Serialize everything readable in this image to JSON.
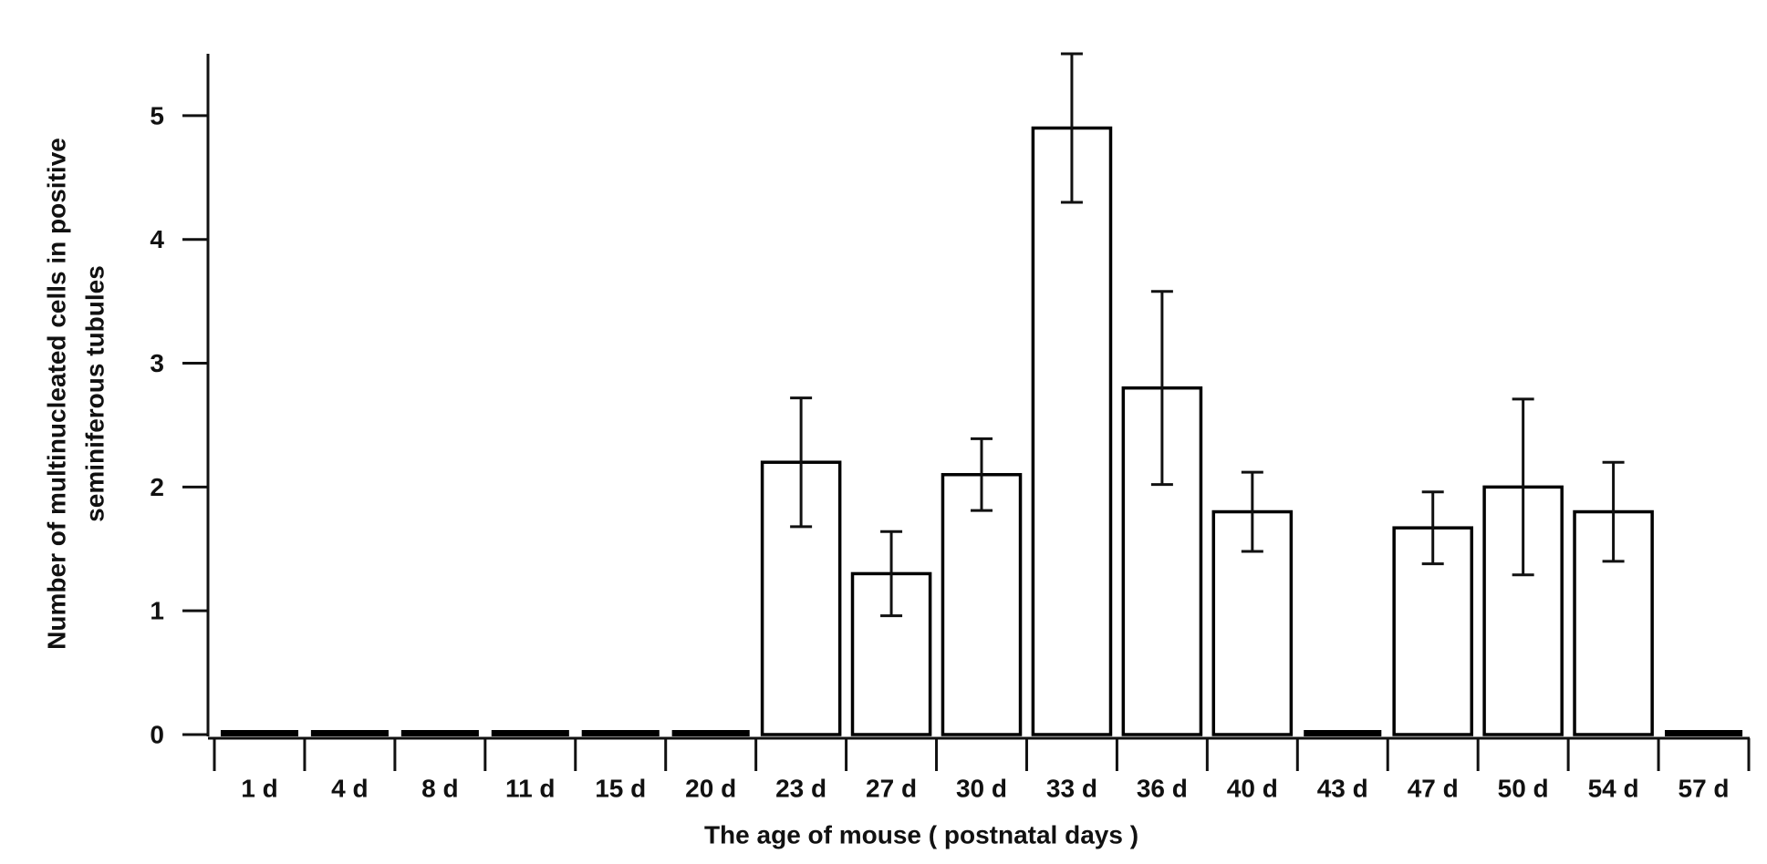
{
  "chart_data": {
    "type": "bar",
    "xlabel": "The age of mouse ( postnatal days )",
    "ylabel": [
      "Number of multinucleated cells in positive",
      "seminiferous tubules"
    ],
    "categories": [
      "1 d",
      "4 d",
      "8 d",
      "11 d",
      "15 d",
      "20 d",
      "23 d",
      "27 d",
      "30 d",
      "33 d",
      "36 d",
      "40 d",
      "43 d",
      "47 d",
      "50 d",
      "54 d",
      "57 d"
    ],
    "values": [
      0,
      0,
      0,
      0,
      0,
      0,
      2.2,
      1.3,
      2.1,
      4.9,
      2.8,
      1.8,
      0,
      1.67,
      2.0,
      1.8,
      0
    ],
    "errors": [
      null,
      null,
      null,
      null,
      null,
      null,
      0.52,
      0.34,
      0.29,
      0.6,
      0.78,
      0.32,
      null,
      0.29,
      0.71,
      0.4,
      null
    ],
    "color": "#ffffff",
    "edgecolor": "#000000",
    "ylim": [
      0,
      5.5
    ],
    "yticks": [
      0,
      1,
      2,
      3,
      4,
      5
    ],
    "grid": false
  }
}
